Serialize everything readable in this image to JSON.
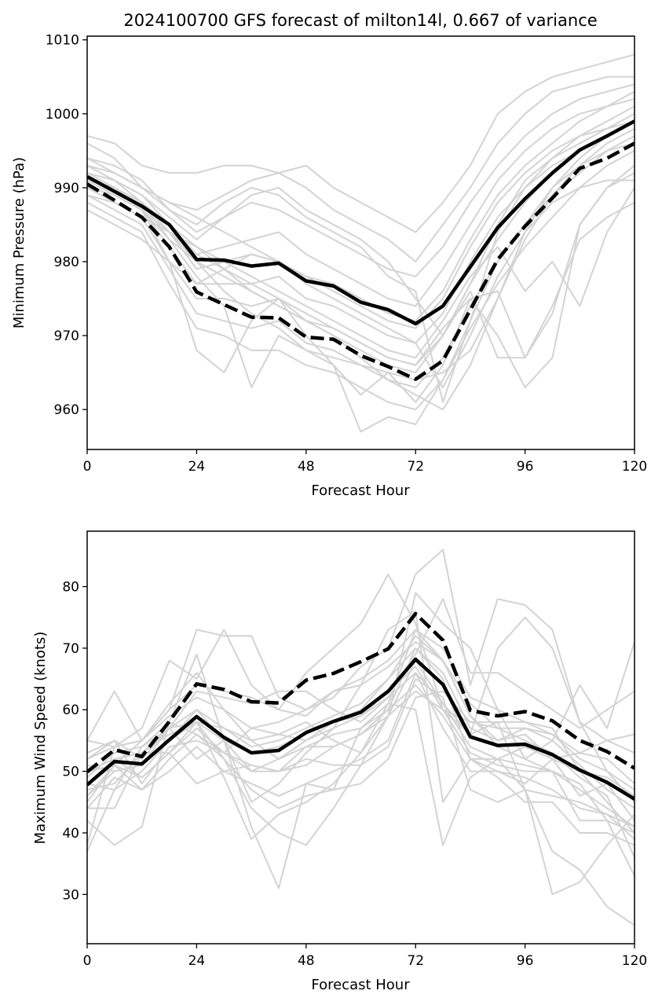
{
  "figure": {
    "title": "2024100700 GFS forecast of milton14l, 0.667 of variance"
  },
  "chart_data": [
    {
      "type": "line",
      "panel": "top",
      "xlabel": "Forecast Hour",
      "ylabel": "Minimum Pressure (hPa)",
      "xlim": [
        0,
        120
      ],
      "ylim": [
        954.6,
        1010.5
      ],
      "xticks": [
        0,
        24,
        48,
        72,
        96,
        120
      ],
      "yticks": [
        960,
        970,
        980,
        990,
        1000,
        1010
      ],
      "grid": false,
      "x": [
        0,
        6,
        12,
        18,
        24,
        30,
        36,
        42,
        48,
        54,
        60,
        66,
        72,
        78,
        84,
        90,
        96,
        102,
        108,
        114,
        120
      ],
      "series": [
        {
          "role": "solid",
          "color": "#000000",
          "values": [
            991.5,
            989.5,
            987.5,
            985.0,
            980.3,
            980.2,
            979.4,
            979.8,
            977.4,
            976.7,
            974.5,
            973.5,
            971.6,
            974.0,
            979.3,
            984.6,
            988.5,
            992.0,
            995.1,
            997.0,
            999.0
          ]
        },
        {
          "role": "dashed",
          "color": "#000000",
          "values": [
            990.5,
            988.3,
            986.0,
            982.0,
            975.9,
            974.2,
            972.5,
            972.4,
            969.8,
            969.5,
            967.3,
            965.8,
            964.1,
            966.6,
            973.5,
            980.3,
            984.8,
            988.6,
            992.6,
            994.0,
            996.0
          ]
        }
      ],
      "ensemble_color": "#d3d3d3",
      "ensemble": [
        [
          997,
          996,
          993,
          992,
          992,
          993,
          993,
          992,
          993,
          990,
          988,
          986,
          984,
          988,
          993,
          1000,
          1003,
          1005,
          1006,
          1007,
          1008
        ],
        [
          996,
          994,
          990,
          988,
          987,
          989,
          991,
          992,
          990,
          987,
          985,
          983,
          980,
          985,
          990,
          996,
          1000,
          1003,
          1004,
          1005,
          1005
        ],
        [
          994,
          993,
          991,
          987,
          984,
          986,
          988,
          987,
          985,
          983,
          981,
          979,
          978,
          982,
          988,
          993,
          997,
          1000,
          1002,
          1003,
          1004
        ],
        [
          993,
          991,
          989,
          985,
          981,
          982,
          983,
          984,
          981,
          979,
          977,
          975,
          974,
          979,
          985,
          991,
          995,
          998,
          1000,
          1001,
          1003
        ],
        [
          992,
          990,
          988,
          984,
          979,
          980,
          981,
          980,
          978,
          977,
          975,
          973,
          972,
          976,
          983,
          989,
          993,
          996,
          999,
          1001,
          1002
        ],
        [
          991,
          989,
          987,
          982,
          977,
          977,
          977,
          978,
          975,
          974,
          972,
          970,
          969,
          973,
          980,
          986,
          990,
          994,
          997,
          999,
          1001
        ],
        [
          990,
          988,
          986,
          980,
          975,
          975,
          974,
          975,
          972,
          971,
          969,
          967,
          966,
          970,
          977,
          983,
          988,
          992,
          995,
          997,
          999
        ],
        [
          989,
          987,
          985,
          979,
          973,
          972,
          971,
          972,
          969,
          968,
          966,
          964,
          963,
          967,
          974,
          980,
          985,
          989,
          992,
          995,
          997
        ],
        [
          988,
          986,
          984,
          977,
          971,
          970,
          968,
          968,
          966,
          965,
          963,
          961,
          960,
          964,
          971,
          977,
          982,
          986,
          990,
          993,
          995
        ],
        [
          992,
          990,
          987,
          980,
          968,
          965,
          972,
          975,
          970,
          966,
          957,
          959,
          958,
          964,
          972,
          980,
          985,
          990,
          993,
          995,
          996
        ],
        [
          993,
          991,
          988,
          983,
          978,
          974,
          963,
          970,
          968,
          966,
          962,
          965,
          961,
          966,
          975,
          976,
          967,
          973,
          985,
          990,
          993
        ],
        [
          990,
          989,
          987,
          984,
          980,
          978,
          976,
          974,
          972,
          970,
          968,
          966,
          965,
          970,
          976,
          967,
          967,
          974,
          983,
          986,
          988
        ],
        [
          991,
          990,
          988,
          985,
          982,
          980,
          978,
          976,
          974,
          972,
          970,
          968,
          967,
          972,
          978,
          982,
          976,
          980,
          974,
          984,
          990
        ],
        [
          989,
          988,
          986,
          984,
          981,
          979,
          977,
          975,
          973,
          971,
          969,
          967,
          966,
          971,
          975,
          970,
          963,
          967,
          985,
          990,
          992
        ],
        [
          994,
          992,
          990,
          988,
          986,
          984,
          982,
          980,
          978,
          976,
          974,
          972,
          971,
          975,
          982,
          988,
          992,
          995,
          997,
          998,
          999
        ],
        [
          987,
          985,
          983,
          980,
          977,
          979,
          981,
          980,
          977,
          975,
          973,
          971,
          969,
          963,
          970,
          978,
          984,
          988,
          990,
          991,
          991
        ],
        [
          992,
          991,
          989,
          986,
          983,
          986,
          989,
          990,
          987,
          985,
          983,
          980,
          975,
          970,
          977,
          985,
          991,
          994,
          996,
          998,
          1000
        ],
        [
          993,
          992,
          990,
          987,
          985,
          988,
          990,
          989,
          986,
          984,
          982,
          978,
          976,
          961,
          972,
          984,
          990,
          993,
          995,
          997,
          999
        ],
        [
          990,
          989,
          987,
          983,
          980,
          976,
          973,
          971,
          968,
          967,
          966,
          965,
          964,
          965,
          968,
          975,
          983,
          989,
          993,
          996,
          998
        ],
        [
          991,
          990,
          988,
          984,
          982,
          979,
          976,
          974,
          972,
          970,
          967,
          964,
          962,
          960,
          966,
          975,
          984,
          990,
          994,
          997,
          999
        ]
      ]
    },
    {
      "type": "line",
      "panel": "bottom",
      "xlabel": "Forecast Hour",
      "ylabel": "Maximum Wind Speed (knots)",
      "xlim": [
        0,
        120
      ],
      "ylim": [
        22.0,
        89.0
      ],
      "xticks": [
        0,
        24,
        48,
        72,
        96,
        120
      ],
      "yticks": [
        30,
        40,
        50,
        60,
        70,
        80
      ],
      "grid": false,
      "x": [
        0,
        6,
        12,
        18,
        24,
        30,
        36,
        42,
        48,
        54,
        60,
        66,
        72,
        78,
        84,
        90,
        96,
        102,
        108,
        114,
        120
      ],
      "series": [
        {
          "role": "solid",
          "color": "#000000",
          "values": [
            47.8,
            51.6,
            51.2,
            55.1,
            58.9,
            55.5,
            53.0,
            53.4,
            56.3,
            58.1,
            59.6,
            63.0,
            68.2,
            64.1,
            55.6,
            54.2,
            54.4,
            52.7,
            50.2,
            48.2,
            45.5
          ]
        },
        {
          "role": "dashed",
          "color": "#000000",
          "values": [
            49.9,
            53.5,
            52.4,
            58.1,
            64.2,
            63.3,
            61.3,
            61.1,
            64.8,
            65.9,
            67.8,
            69.9,
            75.6,
            71.3,
            59.9,
            59.0,
            59.7,
            58.2,
            55.0,
            53.2,
            50.5
          ]
        }
      ],
      "ensemble_color": "#d3d3d3",
      "ensemble": [
        [
          55,
          63,
          55,
          60,
          73,
          72,
          72,
          62,
          60,
          62,
          67,
          70,
          82,
          86,
          64,
          78,
          77,
          73,
          58,
          55,
          53
        ],
        [
          38,
          54,
          57,
          68,
          65,
          73,
          64,
          60,
          66,
          70,
          74,
          82,
          74,
          60,
          56,
          70,
          75,
          70,
          58,
          50,
          45
        ],
        [
          37,
          47,
          54,
          58,
          56,
          52,
          44,
          40,
          38,
          44,
          51,
          59,
          79,
          74,
          70,
          60,
          52,
          55,
          64,
          57,
          71
        ],
        [
          42,
          38,
          41,
          58,
          69,
          55,
          41,
          31,
          48,
          47,
          57,
          61,
          60,
          38,
          49,
          52,
          47,
          37,
          34,
          28,
          25
        ],
        [
          52,
          55,
          52,
          57,
          63,
          62,
          61,
          63,
          63,
          60,
          58,
          62,
          69,
          78,
          66,
          66,
          63,
          60,
          57,
          60,
          63
        ],
        [
          50,
          52,
          49,
          53,
          58,
          52,
          47,
          44,
          46,
          47,
          48,
          52,
          62,
          63,
          58,
          58,
          58,
          57,
          50,
          49,
          46
        ],
        [
          46,
          51,
          55,
          61,
          66,
          60,
          55,
          56,
          58,
          55,
          53,
          61,
          73,
          68,
          59,
          54,
          52,
          50,
          42,
          42,
          40
        ],
        [
          48,
          47,
          50,
          55,
          60,
          57,
          55,
          52,
          54,
          54,
          56,
          60,
          70,
          65,
          52,
          50,
          49,
          47,
          44,
          43,
          41
        ],
        [
          53,
          55,
          48,
          54,
          55,
          53,
          57,
          56,
          55,
          58,
          60,
          65,
          72,
          68,
          59,
          55,
          56,
          52,
          46,
          48,
          42
        ],
        [
          44,
          44,
          53,
          57,
          52,
          55,
          45,
          48,
          53,
          57,
          64,
          73,
          76,
          45,
          52,
          49,
          45,
          45,
          40,
          40,
          38
        ],
        [
          47,
          48,
          53,
          53,
          48,
          50,
          51,
          50,
          52,
          51,
          51,
          54,
          65,
          62,
          47,
          45,
          47,
          46,
          45,
          43,
          39
        ],
        [
          51,
          50,
          51,
          57,
          58,
          49,
          39,
          43,
          45,
          48,
          53,
          59,
          68,
          61,
          56,
          58,
          47,
          30,
          32,
          38,
          43
        ],
        [
          49,
          53,
          54,
          57,
          60,
          55,
          50,
          52,
          55,
          57,
          59,
          63,
          67,
          60,
          58,
          57,
          57,
          56,
          53,
          52,
          48
        ],
        [
          45,
          51,
          47,
          50,
          54,
          50,
          48,
          46,
          48,
          50,
          52,
          55,
          66,
          57,
          50,
          50,
          48,
          52,
          53,
          55,
          56
        ],
        [
          52,
          54,
          55,
          60,
          64,
          63,
          62,
          60,
          59,
          63,
          65,
          68,
          73,
          70,
          62,
          60,
          58,
          56,
          52,
          50,
          47
        ],
        [
          46,
          50,
          51,
          55,
          58,
          55,
          53,
          54,
          56,
          58,
          59,
          62,
          66,
          61,
          54,
          52,
          54,
          52,
          50,
          45,
          40
        ],
        [
          48,
          52,
          53,
          56,
          58,
          57,
          54,
          55,
          57,
          59,
          61,
          65,
          70,
          66,
          57,
          55,
          57,
          55,
          51,
          47,
          44
        ],
        [
          50,
          51,
          49,
          53,
          57,
          53,
          51,
          50,
          54,
          56,
          57,
          60,
          64,
          59,
          52,
          52,
          51,
          50,
          47,
          44,
          41
        ],
        [
          55,
          54,
          55,
          59,
          62,
          60,
          57,
          58,
          60,
          63,
          64,
          67,
          71,
          68,
          61,
          57,
          55,
          53,
          49,
          46,
          36
        ],
        [
          44,
          49,
          47,
          52,
          56,
          53,
          50,
          50,
          51,
          54,
          56,
          59,
          63,
          60,
          53,
          51,
          50,
          50,
          48,
          42,
          33
        ]
      ]
    }
  ]
}
